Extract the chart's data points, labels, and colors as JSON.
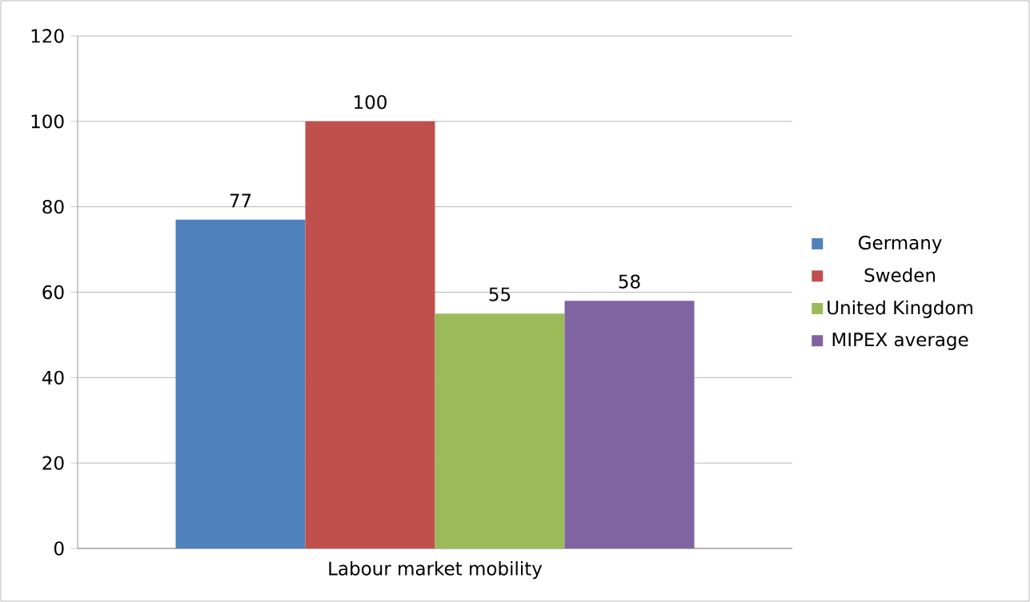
{
  "chart_data": {
    "type": "bar",
    "categories": [
      "Labour market mobility"
    ],
    "series": [
      {
        "name": "Germany",
        "color": "#4f81bd",
        "values": [
          77
        ]
      },
      {
        "name": "Sweden",
        "color": "#c0504d",
        "values": [
          100
        ]
      },
      {
        "name": "United Kingdom",
        "color": "#9bbb59",
        "values": [
          55
        ]
      },
      {
        "name": "MIPEX average",
        "color": "#8064a2",
        "values": [
          58
        ]
      }
    ],
    "ylim": [
      0,
      120
    ],
    "yticks": [
      0,
      20,
      40,
      60,
      80,
      100,
      120
    ],
    "grid": "y",
    "legend": "right",
    "data_labels": true
  }
}
